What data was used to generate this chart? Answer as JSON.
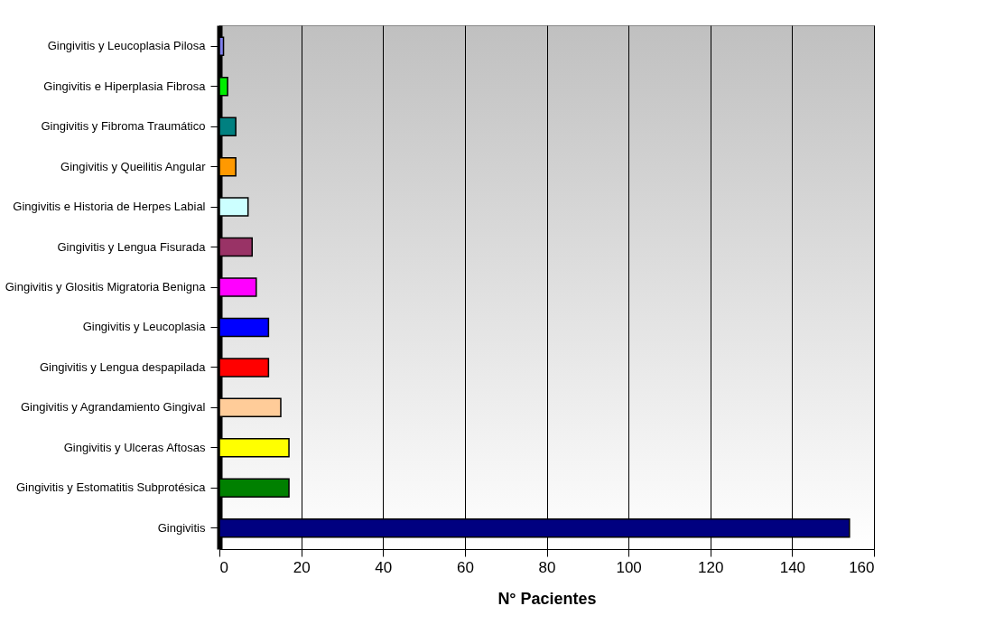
{
  "chart_data": {
    "type": "bar",
    "orientation": "horizontal",
    "xlabel": "N° Pacientes",
    "categories": [
      "Gingivitis y Leucoplasia Pilosa",
      "Gingivitis e Hiperplasia Fibrosa",
      "Gingivitis y Fibroma Traumático",
      "Gingivitis y Queilitis Angular",
      "Gingivitis e Historia de Herpes Labial",
      "Gingivitis y Lengua Fisurada",
      "Gingivitis y Glositis Migratoria Benigna",
      "Gingivitis y Leucoplasia",
      "Gingivitis y Lengua despapilada",
      "Gingivitis y Agrandamiento Gingival",
      "Gingivitis y Ulceras Aftosas",
      "Gingivitis y Estomatitis Subprotésica",
      "Gingivitis"
    ],
    "values": [
      1,
      2,
      4,
      4,
      7,
      8,
      9,
      12,
      12,
      15,
      17,
      17,
      154
    ],
    "colors": [
      "#8080ee",
      "#00ee00",
      "#008080",
      "#ff9900",
      "#ccffff",
      "#993366",
      "#ff00ff",
      "#0000ff",
      "#ff0000",
      "#ffcc99",
      "#ffff00",
      "#008000",
      "#000080"
    ],
    "xlim": [
      0,
      160
    ],
    "xticks": [
      0,
      20,
      40,
      60,
      80,
      100,
      120,
      140,
      160
    ],
    "grid": "x",
    "legend": false
  }
}
